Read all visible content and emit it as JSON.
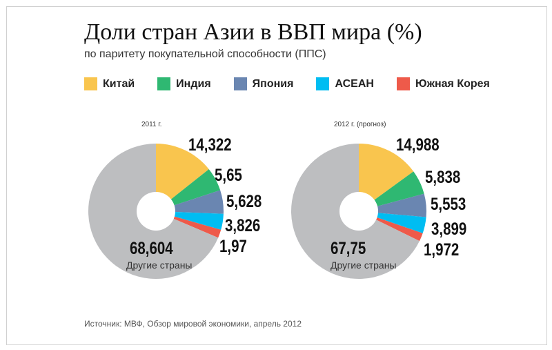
{
  "title": "Доли стран Азии в ВВП мира (%)",
  "subtitle": "по паритету покупательной способности (ППС)",
  "source": "Источник: МВФ, Обзор мировой экономики, апрель 2012",
  "chart_data": {
    "type": "pie",
    "title": "Доли стран Азии в ВВП мира (%)",
    "legend_position": "top",
    "categories": [
      "Китай",
      "Индия",
      "Япония",
      "АСЕАН",
      "Южная Корея",
      "Другие страны"
    ],
    "colors": [
      "#f9c54e",
      "#2fb872",
      "#6a86b1",
      "#00bdf2",
      "#ee5a4a",
      "#bdbec0"
    ],
    "charts": [
      {
        "label": "2011 г.",
        "values": [
          14.322,
          5.65,
          5.628,
          3.826,
          1.97,
          68.604
        ],
        "value_labels": [
          "14,322",
          "5,65",
          "5,628",
          "3,826",
          "1,97",
          "68,604"
        ]
      },
      {
        "label": "2012 г. (прогноз)",
        "values": [
          14.988,
          5.838,
          5.553,
          3.899,
          1.972,
          67.75
        ],
        "value_labels": [
          "14,988",
          "5,838",
          "5,553",
          "3,899",
          "1,972",
          "67,75"
        ]
      }
    ]
  }
}
